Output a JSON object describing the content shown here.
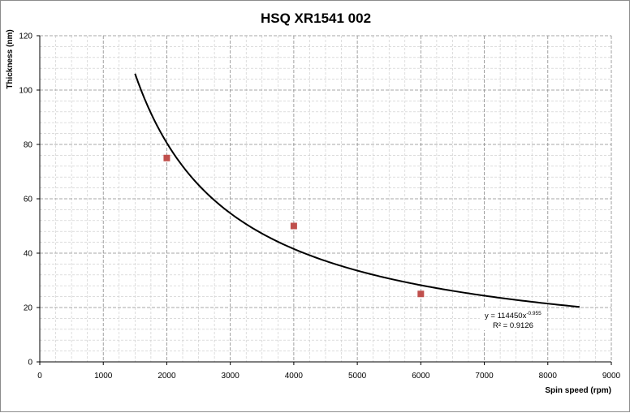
{
  "chart_data": {
    "type": "scatter",
    "title": "HSQ XR1541 002",
    "xlabel": "Spin speed (rpm)",
    "ylabel": "Thickness (nm)",
    "xlim": [
      0,
      9000
    ],
    "ylim": [
      0,
      120
    ],
    "x_ticks": [
      "0",
      "1000",
      "2000",
      "3000",
      "4000",
      "5000",
      "6000",
      "7000",
      "8000",
      "9000"
    ],
    "y_ticks": [
      "0",
      "20",
      "40",
      "60",
      "80",
      "100",
      "120"
    ],
    "grid": true,
    "legend": "none",
    "series": [
      {
        "type": "scatter",
        "color": "#c0504d",
        "marker": "square",
        "x": [
          2000,
          4000,
          6000
        ],
        "y": [
          75,
          50,
          25
        ]
      },
      {
        "type": "trendline",
        "model": "power",
        "coefficient": 114450,
        "exponent": -0.955,
        "x_range": [
          1500,
          8500
        ],
        "color": "#000000"
      }
    ],
    "annotation": {
      "equation_prefix": "y = 114450x",
      "equation_exponent": "-0.955",
      "r_squared": "R² = 0.9126"
    }
  }
}
